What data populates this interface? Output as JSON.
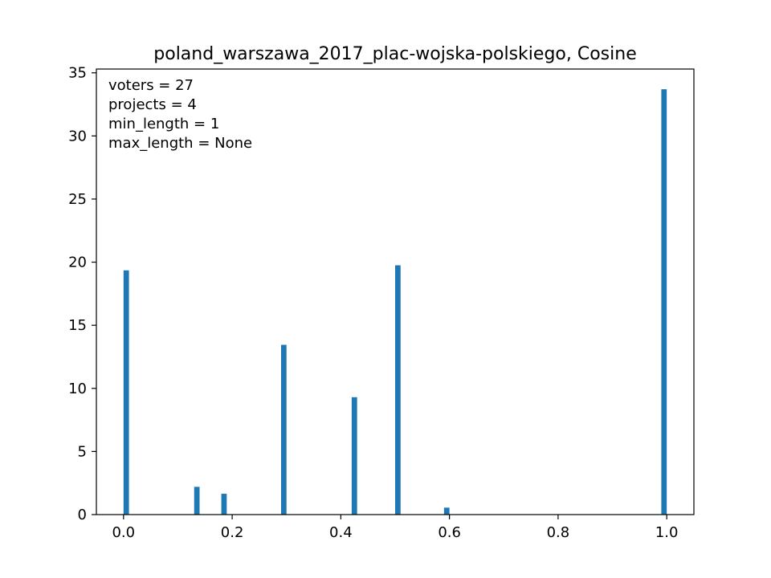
{
  "chart_data": {
    "type": "bar",
    "title": "poland_warszawa_2017_plac-wojska-polskiego, Cosine",
    "xlabel": "",
    "ylabel": "",
    "xlim": [
      -0.05,
      1.05
    ],
    "ylim": [
      0,
      35.3
    ],
    "x_ticks": [
      0.0,
      0.2,
      0.4,
      0.6,
      0.8,
      1.0
    ],
    "x_tick_labels": [
      "0.0",
      "0.2",
      "0.4",
      "0.6",
      "0.8",
      "1.0"
    ],
    "y_ticks": [
      0,
      5,
      10,
      15,
      20,
      25,
      30,
      35
    ],
    "y_tick_labels": [
      "0",
      "5",
      "10",
      "15",
      "20",
      "25",
      "30",
      "35"
    ],
    "bar_width": 0.01,
    "color": "#1f77b4",
    "grid": false,
    "bars": [
      {
        "x": 0.005,
        "value": 19.35
      },
      {
        "x": 0.135,
        "value": 2.2
      },
      {
        "x": 0.185,
        "value": 1.65
      },
      {
        "x": 0.295,
        "value": 13.45
      },
      {
        "x": 0.425,
        "value": 9.3
      },
      {
        "x": 0.505,
        "value": 19.75
      },
      {
        "x": 0.595,
        "value": 0.55
      },
      {
        "x": 0.995,
        "value": 33.7
      }
    ],
    "annotations": [
      "voters = 27",
      "projects = 4",
      "min_length = 1",
      "max_length = None"
    ]
  }
}
